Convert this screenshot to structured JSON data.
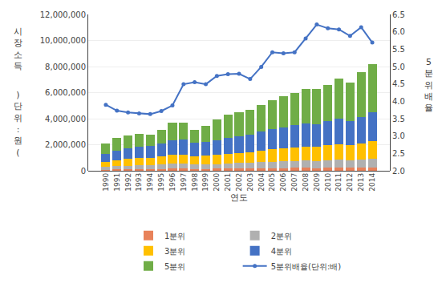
{
  "chart_data": {
    "type": "bar",
    "stacked": true,
    "xlabel": "연도",
    "ylabel": "시\n장\n소\n득",
    "y2label": "5\n분\n위\n배\n율",
    "annotations": [
      ")\n단\n위\n:\n원\n("
    ],
    "categories": [
      1990,
      1991,
      1992,
      1993,
      1994,
      1995,
      1996,
      1997,
      1998,
      1999,
      2000,
      2001,
      2002,
      2003,
      2004,
      2005,
      2006,
      2007,
      2008,
      2009,
      2010,
      2011,
      2012,
      2013,
      2014
    ],
    "series": [
      {
        "name": "1분위",
        "color": "#e8825a",
        "values": [
          90000,
          110000,
          120000,
          130000,
          130000,
          145000,
          160000,
          165000,
          140000,
          145000,
          155000,
          165000,
          175000,
          180000,
          195000,
          210000,
          215000,
          225000,
          230000,
          215000,
          235000,
          245000,
          230000,
          255000,
          270000
        ]
      },
      {
        "name": "2분위",
        "color": "#b0b0b0",
        "values": [
          200000,
          240000,
          270000,
          290000,
          295000,
          325000,
          365000,
          375000,
          330000,
          345000,
          360000,
          390000,
          410000,
          425000,
          460000,
          490000,
          510000,
          540000,
          555000,
          540000,
          580000,
          600000,
          575000,
          615000,
          665000
        ]
      },
      {
        "name": "3분위",
        "color": "#ffc000",
        "values": [
          380000,
          460000,
          510000,
          545000,
          565000,
          625000,
          700000,
          715000,
          640000,
          655000,
          695000,
          755000,
          795000,
          820000,
          890000,
          945000,
          990000,
          1050000,
          1085000,
          1065000,
          1145000,
          1190000,
          1145000,
          1235000,
          1330000
        ]
      },
      {
        "name": "4분위",
        "color": "#4472c4",
        "values": [
          620000,
          750000,
          825000,
          875000,
          920000,
          1010000,
          1130000,
          1155000,
          1040000,
          1070000,
          1130000,
          1225000,
          1290000,
          1340000,
          1450000,
          1540000,
          1610000,
          1715000,
          1785000,
          1750000,
          1885000,
          1960000,
          1895000,
          2045000,
          2205000
        ]
      },
      {
        "name": "5분위",
        "color": "#70ad47",
        "values": [
          810000,
          940000,
          975000,
          1010000,
          870000,
          1035000,
          1345000,
          1290000,
          1010000,
          1235000,
          1620000,
          1765000,
          1830000,
          1885000,
          2045000,
          2215000,
          2375000,
          2470000,
          2645000,
          2680000,
          2755000,
          3105000,
          2955000,
          3450000,
          3730000
        ]
      },
      {
        "name": "5분위배율(단위:배)",
        "type": "line",
        "axis": "y2",
        "marker": "circle",
        "color": "#4472c4",
        "values": [
          3.9,
          3.73,
          3.68,
          3.65,
          3.63,
          3.72,
          3.88,
          4.49,
          4.55,
          4.49,
          4.73,
          4.78,
          4.79,
          4.64,
          4.99,
          5.41,
          5.38,
          5.41,
          5.81,
          6.21,
          6.1,
          6.07,
          5.88,
          6.13,
          5.69
        ]
      }
    ],
    "ylim": [
      0,
      12000000
    ],
    "yticks": [
      0,
      {
        "value": 2000000,
        "label": "2,000,000"
      },
      {
        "value": 4000000,
        "label": "4,000,000"
      },
      {
        "value": 6000000,
        "label": "6,000,000"
      },
      {
        "value": 8000000,
        "label": "8,000,000"
      },
      {
        "value": 10000000,
        "label": "10,000,000"
      },
      {
        "value": 12000000,
        "label": "12,000,000"
      }
    ],
    "y2lim": [
      2.0,
      6.5
    ],
    "y2ticks": [
      {
        "value": 2,
        "label": "2.0"
      },
      2.5,
      {
        "value": 3,
        "label": "3.0"
      },
      3.5,
      {
        "value": 4,
        "label": "4.0"
      },
      4.5,
      {
        "value": 5,
        "label": "5.0"
      },
      5.5,
      {
        "value": 6,
        "label": "6.0"
      },
      6.5
    ],
    "grid": true,
    "legend": "bottom"
  }
}
